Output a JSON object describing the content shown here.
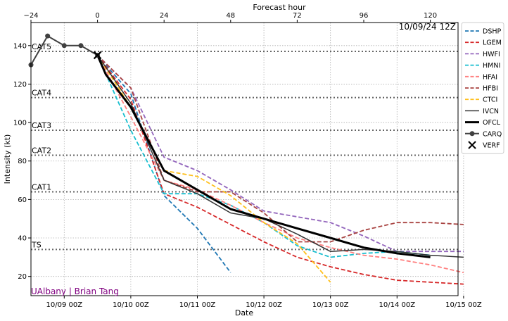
{
  "chart_data": {
    "type": "line",
    "top_axis_label": "Forecast hour",
    "xlabel": "Date",
    "ylabel": "Intensity (kt)",
    "init_label": "10/09/24 12Z",
    "credit": "UAlbany | Brian Tang",
    "forecast_hour_ticks": [
      -24,
      0,
      24,
      48,
      72,
      96,
      120
    ],
    "forecast_hour_range": [
      -24,
      130
    ],
    "date_ticks": [
      {
        "hour": -12,
        "label": "10/09 00Z"
      },
      {
        "hour": 12,
        "label": "10/10 00Z"
      },
      {
        "hour": 36,
        "label": "10/11 00Z"
      },
      {
        "hour": 60,
        "label": "10/12 00Z"
      },
      {
        "hour": 84,
        "label": "10/13 00Z"
      },
      {
        "hour": 108,
        "label": "10/14 00Z"
      },
      {
        "hour": 132,
        "label": "10/15 00Z"
      }
    ],
    "ylim": [
      10,
      152
    ],
    "yticks": [
      20,
      40,
      60,
      80,
      100,
      120,
      140
    ],
    "grid": true,
    "legend_position": "outside-right",
    "categories": [
      {
        "label": "TS",
        "value": 34
      },
      {
        "label": "CAT1",
        "value": 64
      },
      {
        "label": "CAT2",
        "value": 83
      },
      {
        "label": "CAT3",
        "value": 96
      },
      {
        "label": "CAT4",
        "value": 113
      },
      {
        "label": "CAT5",
        "value": 137
      }
    ],
    "series": [
      {
        "name": "DSHP",
        "color": "#1f77b4",
        "style": "dashed",
        "x": [
          0,
          12,
          24,
          36,
          48
        ],
        "y": [
          135,
          115,
          62,
          45,
          22
        ]
      },
      {
        "name": "LGEM",
        "color": "#d62728",
        "style": "dashed",
        "x": [
          0,
          12,
          24,
          36,
          48,
          60,
          72,
          84,
          96,
          108,
          120,
          132
        ],
        "y": [
          135,
          112,
          63,
          56,
          47,
          38,
          30,
          25,
          21,
          18,
          17,
          16
        ]
      },
      {
        "name": "HWFI",
        "color": "#9467bd",
        "style": "dashed",
        "x": [
          0,
          12,
          24,
          36,
          48,
          60,
          72,
          84,
          96,
          108,
          120,
          132
        ],
        "y": [
          135,
          118,
          82,
          75,
          65,
          54,
          51,
          48,
          41,
          33,
          33,
          33
        ]
      },
      {
        "name": "HMNI",
        "color": "#17becf",
        "style": "dashed",
        "x": [
          0,
          12,
          24,
          36,
          48,
          60,
          72,
          84,
          96,
          108,
          120
        ],
        "y": [
          135,
          96,
          63,
          63,
          57,
          48,
          36,
          30,
          32,
          33,
          31
        ]
      },
      {
        "name": "HFAI",
        "color": "#ff7f7f",
        "style": "dashed",
        "x": [
          0,
          12,
          24,
          36,
          48,
          60,
          72,
          84,
          96,
          108,
          120,
          132
        ],
        "y": [
          135,
          103,
          70,
          65,
          57,
          48,
          40,
          35,
          31,
          29,
          26,
          22
        ]
      },
      {
        "name": "HFBI",
        "color": "#a94442",
        "style": "dashed",
        "x": [
          0,
          12,
          24,
          36,
          48,
          60,
          72,
          84,
          96,
          108,
          120,
          132
        ],
        "y": [
          135,
          118,
          70,
          64,
          64,
          53,
          38,
          38,
          44,
          48,
          48,
          47
        ]
      },
      {
        "name": "CTCI",
        "color": "#ffbf1a",
        "style": "dashed",
        "x": [
          0,
          12,
          24,
          36,
          48,
          60,
          72,
          84
        ],
        "y": [
          135,
          108,
          75,
          72,
          62,
          48,
          37,
          17
        ]
      },
      {
        "name": "IVCN",
        "color": "#333333",
        "style": "solid-thin",
        "x": [
          0,
          12,
          24,
          36,
          48,
          60,
          72,
          84,
          96,
          108,
          120,
          132
        ],
        "y": [
          135,
          110,
          70,
          63,
          53,
          50,
          42,
          33,
          34,
          33,
          31,
          30
        ]
      },
      {
        "name": "OFCL",
        "color": "#000000",
        "style": "solid-thick",
        "x": [
          0,
          3,
          12,
          24,
          36,
          48,
          60,
          72,
          84,
          96,
          108,
          120
        ],
        "y": [
          135,
          125,
          108,
          75,
          65,
          55,
          50,
          45,
          40,
          35,
          32,
          30
        ]
      },
      {
        "name": "CARQ",
        "color": "#404040",
        "style": "marker",
        "x": [
          -24,
          -18,
          -12,
          -6,
          0
        ],
        "y": [
          130,
          145,
          140,
          140,
          135
        ]
      },
      {
        "name": "VERF",
        "color": "#000000",
        "style": "x-marker",
        "x": [
          0
        ],
        "y": [
          135
        ]
      }
    ]
  }
}
